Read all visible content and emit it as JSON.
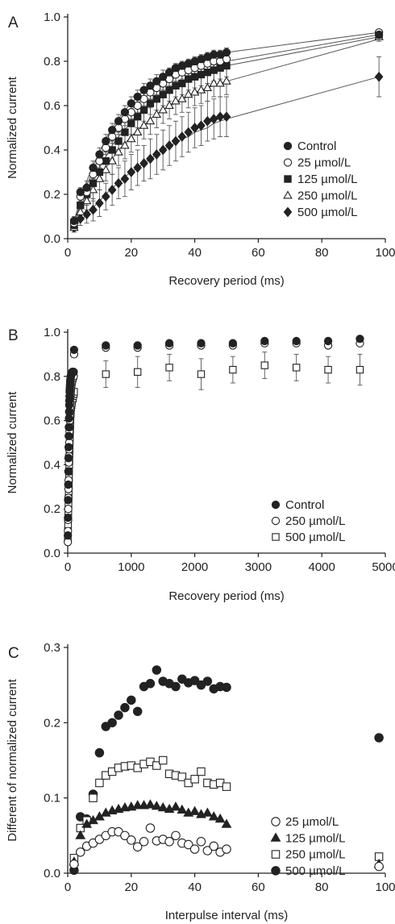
{
  "chart_data": [
    {
      "panel_label": "A",
      "type": "scatter",
      "xlabel": "Recovery period (ms)",
      "ylabel": "Normalized current",
      "xlim": [
        0,
        100
      ],
      "ylim": [
        0,
        1.0
      ],
      "xticks": [
        "0",
        "20",
        "40",
        "60",
        "80",
        "100"
      ],
      "yticks": [
        "0.0",
        "0.2",
        "0.4",
        "0.6",
        "0.8",
        "1.0"
      ],
      "legend_position": "lower-right",
      "grid": false,
      "x": [
        2,
        4,
        6,
        8,
        10,
        12,
        14,
        16,
        18,
        20,
        22,
        24,
        26,
        28,
        30,
        32,
        34,
        36,
        38,
        40,
        42,
        44,
        46,
        48,
        50,
        98
      ],
      "series": [
        {
          "name": "Control",
          "marker": "filled-circle",
          "values": [
            0.08,
            0.21,
            0.23,
            0.32,
            0.38,
            0.44,
            0.49,
            0.53,
            0.57,
            0.61,
            0.64,
            0.67,
            0.69,
            0.71,
            0.73,
            0.75,
            0.77,
            0.78,
            0.79,
            0.8,
            0.81,
            0.82,
            0.83,
            0.83,
            0.84,
            0.92
          ],
          "errors": [
            0.02,
            0.02,
            0.03,
            0.03,
            0.03,
            0.03,
            0.03,
            0.03,
            0.03,
            0.03,
            0.03,
            0.03,
            0.03,
            0.03,
            0.03,
            0.02,
            0.02,
            0.02,
            0.02,
            0.02,
            0.02,
            0.02,
            0.02,
            0.02,
            0.02,
            0.01
          ],
          "fit": [
            0.08,
            0.18,
            0.26,
            0.33,
            0.39,
            0.45,
            0.5,
            0.54,
            0.58,
            0.61,
            0.64,
            0.67,
            0.69,
            0.71,
            0.73,
            0.75,
            0.76,
            0.77,
            0.79,
            0.8,
            0.81,
            0.81,
            0.82,
            0.83,
            0.84,
            0.93
          ]
        },
        {
          "name": "25 µmol/L",
          "marker": "open-circle",
          "values": [
            0.07,
            0.19,
            0.21,
            0.29,
            0.35,
            0.41,
            0.46,
            0.5,
            0.54,
            0.57,
            0.6,
            0.63,
            0.66,
            0.68,
            0.7,
            0.72,
            0.74,
            0.75,
            0.76,
            0.77,
            0.78,
            0.79,
            0.8,
            0.8,
            0.81,
            0.93
          ],
          "errors": [
            0.02,
            0.02,
            0.03,
            0.03,
            0.03,
            0.03,
            0.03,
            0.03,
            0.03,
            0.03,
            0.03,
            0.03,
            0.03,
            0.03,
            0.03,
            0.03,
            0.03,
            0.03,
            0.03,
            0.03,
            0.03,
            0.03,
            0.03,
            0.03,
            0.03,
            0.01
          ],
          "fit": [
            0.07,
            0.16,
            0.24,
            0.31,
            0.37,
            0.42,
            0.47,
            0.51,
            0.55,
            0.58,
            0.61,
            0.63,
            0.66,
            0.68,
            0.7,
            0.71,
            0.73,
            0.74,
            0.75,
            0.76,
            0.77,
            0.78,
            0.79,
            0.8,
            0.8,
            0.92
          ]
        },
        {
          "name": "125 µmol/L",
          "marker": "filled-square",
          "values": [
            0.06,
            0.15,
            0.2,
            0.25,
            0.3,
            0.35,
            0.4,
            0.44,
            0.48,
            0.52,
            0.55,
            0.58,
            0.61,
            0.63,
            0.65,
            0.67,
            0.69,
            0.7,
            0.72,
            0.73,
            0.74,
            0.75,
            0.76,
            0.77,
            0.78,
            0.92
          ],
          "errors": [
            0.02,
            0.03,
            0.03,
            0.04,
            0.04,
            0.04,
            0.04,
            0.04,
            0.05,
            0.05,
            0.05,
            0.05,
            0.05,
            0.05,
            0.05,
            0.05,
            0.05,
            0.05,
            0.05,
            0.05,
            0.05,
            0.05,
            0.05,
            0.05,
            0.05,
            0.02
          ],
          "fit": [
            0.06,
            0.14,
            0.21,
            0.27,
            0.32,
            0.37,
            0.42,
            0.46,
            0.49,
            0.53,
            0.56,
            0.58,
            0.61,
            0.63,
            0.65,
            0.67,
            0.69,
            0.7,
            0.72,
            0.73,
            0.74,
            0.75,
            0.76,
            0.77,
            0.78,
            0.91
          ]
        },
        {
          "name": "250 µmol/L",
          "marker": "open-triangle",
          "values": [
            0.05,
            0.12,
            0.17,
            0.22,
            0.27,
            0.31,
            0.35,
            0.39,
            0.42,
            0.45,
            0.48,
            0.51,
            0.53,
            0.56,
            0.58,
            0.6,
            0.62,
            0.63,
            0.65,
            0.66,
            0.67,
            0.68,
            0.7,
            0.7,
            0.71,
            0.91
          ],
          "errors": [
            0.02,
            0.03,
            0.04,
            0.05,
            0.05,
            0.05,
            0.06,
            0.06,
            0.06,
            0.06,
            0.06,
            0.06,
            0.06,
            0.06,
            0.06,
            0.06,
            0.06,
            0.06,
            0.06,
            0.06,
            0.06,
            0.06,
            0.06,
            0.06,
            0.06,
            0.02
          ],
          "fit": [
            0.05,
            0.12,
            0.18,
            0.23,
            0.28,
            0.32,
            0.36,
            0.4,
            0.43,
            0.46,
            0.49,
            0.51,
            0.54,
            0.56,
            0.58,
            0.6,
            0.61,
            0.63,
            0.64,
            0.66,
            0.67,
            0.68,
            0.69,
            0.7,
            0.71,
            0.9
          ]
        },
        {
          "name": "500 µmol/L",
          "marker": "filled-diamond",
          "values": [
            0.05,
            0.09,
            0.11,
            0.13,
            0.16,
            0.19,
            0.22,
            0.25,
            0.27,
            0.3,
            0.32,
            0.34,
            0.36,
            0.38,
            0.4,
            0.42,
            0.44,
            0.46,
            0.48,
            0.5,
            0.51,
            0.53,
            0.54,
            0.55,
            0.55,
            0.73
          ],
          "errors": [
            0.02,
            0.03,
            0.04,
            0.05,
            0.06,
            0.06,
            0.07,
            0.07,
            0.08,
            0.08,
            0.08,
            0.08,
            0.09,
            0.09,
            0.09,
            0.09,
            0.09,
            0.09,
            0.09,
            0.09,
            0.09,
            0.09,
            0.09,
            0.09,
            0.09,
            0.09
          ],
          "fit": [
            0.05,
            0.08,
            0.11,
            0.14,
            0.17,
            0.2,
            0.23,
            0.25,
            0.28,
            0.3,
            0.32,
            0.34,
            0.36,
            0.38,
            0.4,
            0.42,
            0.43,
            0.45,
            0.46,
            0.48,
            0.49,
            0.5,
            0.52,
            0.53,
            0.54,
            0.73
          ]
        }
      ]
    },
    {
      "panel_label": "B",
      "type": "scatter",
      "xlabel": "Recovery period (ms)",
      "ylabel": "Normalized current",
      "xlim": [
        0,
        5000
      ],
      "ylim": [
        0,
        1.0
      ],
      "xticks": [
        "0",
        "1000",
        "2000",
        "3000",
        "4000",
        "5000"
      ],
      "yticks": [
        "0.0",
        "0.2",
        "0.4",
        "0.6",
        "0.8",
        "1.0"
      ],
      "legend_position": "lower-right",
      "grid": false,
      "x": [
        2,
        4,
        6,
        8,
        10,
        12,
        14,
        16,
        18,
        20,
        22,
        24,
        26,
        28,
        30,
        32,
        34,
        36,
        38,
        40,
        42,
        44,
        46,
        48,
        50,
        55,
        60,
        65,
        70,
        75,
        80,
        85,
        90,
        95,
        100,
        600,
        1100,
        1600,
        2100,
        2600,
        3100,
        3600,
        4100,
        4600
      ],
      "series": [
        {
          "name": "Control",
          "marker": "filled-circle",
          "values": [
            0.08,
            0.16,
            0.24,
            0.31,
            0.37,
            0.43,
            0.48,
            0.53,
            0.57,
            0.61,
            0.64,
            0.67,
            0.69,
            0.71,
            0.73,
            0.74,
            0.75,
            0.76,
            0.77,
            0.78,
            0.78,
            0.79,
            0.79,
            0.8,
            0.8,
            0.81,
            0.81,
            0.81,
            0.82,
            0.82,
            0.82,
            0.82,
            0.82,
            0.82,
            0.92,
            0.94,
            0.94,
            0.95,
            0.95,
            0.95,
            0.96,
            0.96,
            0.96,
            0.97
          ],
          "errors": []
        },
        {
          "name": "250 µmol/L",
          "marker": "open-circle",
          "values": [
            0.05,
            0.1,
            0.15,
            0.2,
            0.25,
            0.29,
            0.33,
            0.37,
            0.41,
            0.44,
            0.47,
            0.5,
            0.53,
            0.55,
            0.57,
            0.6,
            0.62,
            0.64,
            0.66,
            0.68,
            0.7,
            0.71,
            0.72,
            0.73,
            0.74,
            0.75,
            0.76,
            0.77,
            0.78,
            0.78,
            0.79,
            0.79,
            0.8,
            0.8,
            0.9,
            0.93,
            0.93,
            0.94,
            0.94,
            0.94,
            0.95,
            0.95,
            0.94,
            0.95
          ],
          "errors": []
        },
        {
          "name": "500 µmol/L",
          "marker": "open-square",
          "values": [
            0.07,
            0.1,
            0.13,
            0.16,
            0.19,
            0.22,
            0.25,
            0.28,
            0.31,
            0.34,
            0.37,
            0.4,
            0.42,
            0.45,
            0.47,
            0.5,
            0.52,
            0.54,
            0.56,
            0.58,
            0.6,
            0.62,
            0.63,
            0.64,
            0.65,
            0.66,
            0.67,
            0.68,
            0.69,
            0.7,
            0.7,
            0.71,
            0.72,
            0.72,
            0.73,
            0.81,
            0.82,
            0.84,
            0.81,
            0.83,
            0.85,
            0.84,
            0.83,
            0.83
          ],
          "errors": [
            0,
            0,
            0,
            0,
            0,
            0,
            0,
            0,
            0,
            0,
            0,
            0,
            0,
            0,
            0,
            0,
            0,
            0,
            0,
            0,
            0,
            0,
            0,
            0,
            0,
            0,
            0,
            0,
            0,
            0,
            0,
            0,
            0,
            0,
            0,
            0.06,
            0.07,
            0.06,
            0.07,
            0.06,
            0.06,
            0.06,
            0.06,
            0.07
          ]
        }
      ]
    },
    {
      "panel_label": "C",
      "type": "scatter",
      "xlabel": "Interpulse interval (ms)",
      "ylabel": "Different of normalized current",
      "xlim": [
        0,
        100
      ],
      "ylim": [
        0,
        0.3
      ],
      "xticks": [
        "0",
        "20",
        "40",
        "60",
        "80",
        "100"
      ],
      "yticks": [
        "0.0",
        "0.1",
        "0.2",
        "0.3"
      ],
      "legend_position": "lower-right",
      "grid": false,
      "x": [
        2,
        4,
        6,
        8,
        10,
        12,
        14,
        16,
        18,
        20,
        22,
        24,
        26,
        28,
        30,
        32,
        34,
        36,
        38,
        40,
        42,
        44,
        46,
        48,
        50,
        98
      ],
      "series": [
        {
          "name": "25 µmol/L",
          "marker": "open-circle",
          "values": [
            0.012,
            0.028,
            0.036,
            0.04,
            0.045,
            0.05,
            0.055,
            0.055,
            0.05,
            0.044,
            0.035,
            0.042,
            0.06,
            0.043,
            0.045,
            0.042,
            0.05,
            0.04,
            0.038,
            0.032,
            0.042,
            0.03,
            0.036,
            0.028,
            0.032,
            0.009
          ],
          "errors": []
        },
        {
          "name": "125 µmol/L",
          "marker": "filled-triangle",
          "values": [
            0.015,
            0.05,
            0.065,
            0.07,
            0.075,
            0.08,
            0.083,
            0.085,
            0.087,
            0.088,
            0.09,
            0.09,
            0.091,
            0.089,
            0.087,
            0.085,
            0.088,
            0.084,
            0.08,
            0.082,
            0.078,
            0.08,
            0.075,
            0.072,
            0.065,
            0.012
          ],
          "errors": []
        },
        {
          "name": "250 µmol/L",
          "marker": "open-square",
          "values": [
            0.02,
            0.06,
            0.07,
            0.1,
            0.12,
            0.13,
            0.135,
            0.14,
            0.142,
            0.143,
            0.14,
            0.145,
            0.148,
            0.143,
            0.15,
            0.132,
            0.13,
            0.128,
            0.12,
            0.125,
            0.135,
            0.12,
            0.118,
            0.12,
            0.115,
            0.022
          ],
          "errors": []
        },
        {
          "name": "500 µmol/L",
          "marker": "filled-circle",
          "values": [
            0.004,
            0.075,
            0.072,
            0.105,
            0.16,
            0.195,
            0.2,
            0.21,
            0.22,
            0.23,
            0.215,
            0.248,
            0.252,
            0.27,
            0.255,
            0.252,
            0.248,
            0.258,
            0.253,
            0.256,
            0.25,
            0.255,
            0.245,
            0.248,
            0.247,
            0.18
          ],
          "errors": []
        }
      ]
    }
  ]
}
